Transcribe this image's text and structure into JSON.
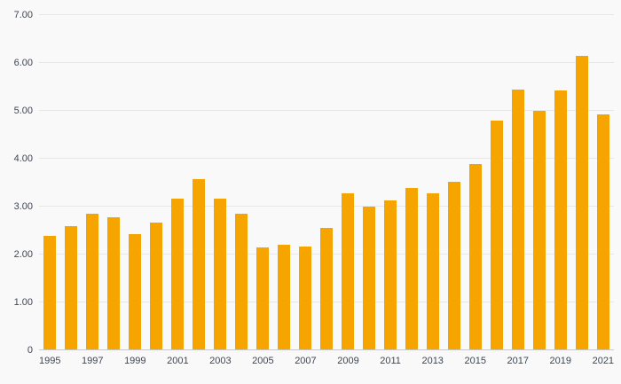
{
  "chart_data": {
    "type": "bar",
    "title": "",
    "xlabel": "",
    "ylabel": "",
    "categories": [
      1995,
      1996,
      1997,
      1998,
      1999,
      2000,
      2001,
      2002,
      2003,
      2004,
      2005,
      2006,
      2007,
      2008,
      2009,
      2010,
      2011,
      2012,
      2013,
      2014,
      2015,
      2016,
      2017,
      2018,
      2019,
      2020,
      2021
    ],
    "values": [
      2.38,
      2.6,
      2.85,
      2.77,
      2.42,
      2.67,
      3.17,
      3.57,
      3.17,
      2.86,
      2.15,
      2.21,
      2.16,
      2.56,
      3.28,
      3.0,
      3.13,
      3.38,
      3.28,
      3.52,
      3.89,
      4.8,
      5.45,
      5.0,
      5.43,
      6.15,
      4.92
    ],
    "ylim": [
      0,
      7
    ],
    "ytick_step": 1,
    "ytick_labels": [
      "0",
      "1.00",
      "2.00",
      "3.00",
      "4.00",
      "5.00",
      "6.00",
      "7.00"
    ],
    "xtick_every": 2,
    "grid": true,
    "legend": "none",
    "colors": {
      "bar": "#F6A500",
      "gridline": "#e7e7e7",
      "baseline": "#c9c9c9",
      "tick_text": "#3c4757",
      "background": "#f9f9f9"
    }
  }
}
